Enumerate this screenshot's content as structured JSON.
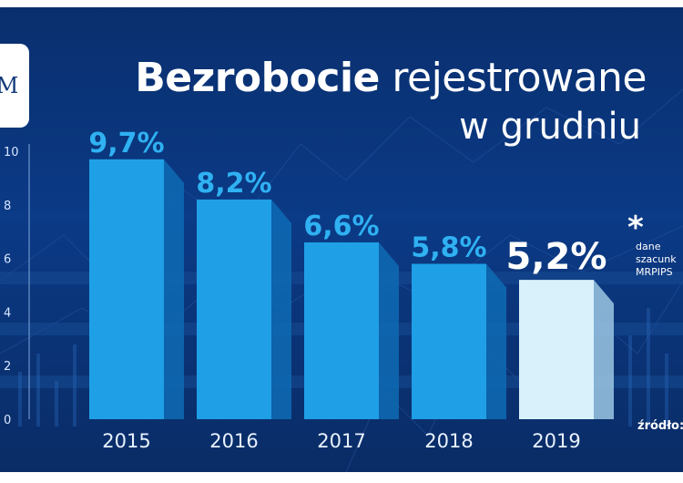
{
  "header": {
    "logo_text": "M",
    "title_bold": "Bezrobocie",
    "title_rest": "rejestrowane",
    "title_line2": "w grudniu"
  },
  "note": {
    "star": "*",
    "text": "dane\nszacunk\nMRPIPS"
  },
  "source_label": "źródło:",
  "chart_data": {
    "type": "bar",
    "title": "Bezrobocie rejestrowane w grudniu",
    "xlabel": "",
    "ylabel": "",
    "categories": [
      "2015",
      "2016",
      "2017",
      "2018",
      "2019"
    ],
    "values": [
      9.7,
      8.2,
      6.6,
      5.8,
      5.2
    ],
    "value_labels": [
      "9,7%",
      "8,2%",
      "6,6%",
      "5,8%",
      "5,2%"
    ],
    "highlighted_index": 4,
    "ylim": [
      0,
      10
    ],
    "yticks": [
      0,
      2,
      4,
      6,
      8,
      10
    ],
    "grid": false,
    "colors": {
      "bar": "#1f9fe6",
      "bar_side": "#0e6bb4",
      "bar_highlight": "#d9f1fb",
      "bar_highlight_side": "#9cc7e3",
      "label": "#2fb1f2",
      "label_highlight": "#ffffff"
    }
  }
}
